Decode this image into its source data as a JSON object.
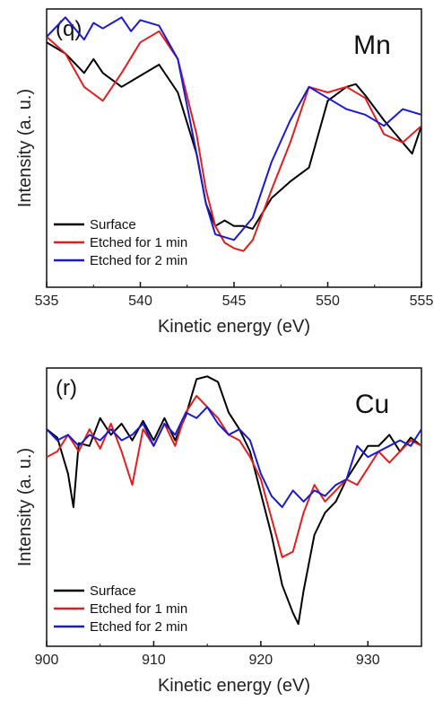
{
  "chart_data": [
    {
      "type": "line",
      "panel_label": "(q)",
      "element_label": "Mn",
      "xlabel": "Kinetic energy (eV)",
      "ylabel": "Intensity (a. u.)",
      "xlim": [
        535,
        555
      ],
      "x_ticks": [
        535,
        540,
        545,
        550,
        555
      ],
      "grid": false,
      "legend_position": "bottom-left",
      "series": [
        {
          "name": "Surface",
          "color": "#000000",
          "x": [
            535,
            536,
            537,
            537.5,
            538,
            539,
            540,
            541,
            542,
            543,
            543.5,
            544,
            544.5,
            545,
            545.5,
            546,
            547,
            548,
            549,
            550,
            551,
            551.5,
            552,
            553,
            554,
            554.5,
            555
          ],
          "y": [
            0.88,
            0.84,
            0.77,
            0.82,
            0.77,
            0.72,
            0.76,
            0.8,
            0.7,
            0.48,
            0.3,
            0.22,
            0.24,
            0.22,
            0.22,
            0.21,
            0.32,
            0.38,
            0.43,
            0.67,
            0.72,
            0.73,
            0.69,
            0.6,
            0.52,
            0.48,
            0.58
          ]
        },
        {
          "name": "Etched for 1 min",
          "color": "#e02020",
          "x": [
            535,
            536,
            537,
            538,
            539,
            540,
            541,
            542,
            543,
            543.5,
            544,
            544.5,
            545,
            545.5,
            546,
            547,
            548,
            549,
            550,
            551,
            552,
            553,
            554,
            555
          ],
          "y": [
            0.9,
            0.84,
            0.72,
            0.67,
            0.77,
            0.88,
            0.92,
            0.82,
            0.55,
            0.35,
            0.22,
            0.16,
            0.14,
            0.13,
            0.17,
            0.35,
            0.52,
            0.72,
            0.7,
            0.72,
            0.68,
            0.55,
            0.52,
            0.58
          ]
        },
        {
          "name": "Etched for 2 min",
          "color": "#1a1ad0",
          "x": [
            535,
            536,
            537,
            537.5,
            538,
            539,
            539.5,
            540,
            541,
            542,
            543,
            543.5,
            544,
            544.5,
            545,
            546,
            547,
            548,
            549,
            550,
            551,
            552,
            553,
            554,
            555
          ],
          "y": [
            0.9,
            0.97,
            0.89,
            0.95,
            0.93,
            0.97,
            0.92,
            0.96,
            0.94,
            0.82,
            0.48,
            0.3,
            0.19,
            0.18,
            0.17,
            0.25,
            0.45,
            0.6,
            0.72,
            0.68,
            0.64,
            0.62,
            0.58,
            0.64,
            0.62
          ]
        }
      ]
    },
    {
      "type": "line",
      "panel_label": "(r)",
      "element_label": "Cu",
      "xlabel": "Kinetic energy (eV)",
      "ylabel": "Intensity (a. u.)",
      "xlim": [
        900,
        935
      ],
      "x_ticks": [
        900,
        910,
        920,
        930
      ],
      "grid": false,
      "legend_position": "bottom-left",
      "series": [
        {
          "name": "Surface",
          "color": "#000000",
          "x": [
            900,
            901,
            902,
            902.5,
            903,
            904,
            905,
            906,
            907,
            908,
            909,
            910,
            911,
            912,
            913,
            914,
            915,
            916,
            917,
            918,
            919,
            920,
            921,
            922,
            923,
            923.5,
            924,
            925,
            926,
            927,
            928,
            929,
            930,
            931,
            932,
            933,
            934,
            935
          ],
          "y": [
            0.78,
            0.75,
            0.62,
            0.5,
            0.73,
            0.72,
            0.82,
            0.76,
            0.8,
            0.74,
            0.81,
            0.74,
            0.82,
            0.74,
            0.83,
            0.96,
            0.97,
            0.95,
            0.84,
            0.78,
            0.7,
            0.55,
            0.4,
            0.22,
            0.12,
            0.08,
            0.2,
            0.4,
            0.48,
            0.52,
            0.6,
            0.66,
            0.72,
            0.72,
            0.76,
            0.7,
            0.75,
            0.72
          ]
        },
        {
          "name": "Etched for 1 min",
          "color": "#e02020",
          "x": [
            900,
            901,
            902,
            903,
            904,
            905,
            906,
            907,
            908,
            909,
            910,
            911,
            912,
            913,
            914,
            915,
            916,
            917,
            918,
            919,
            920,
            921,
            922,
            923,
            924,
            925,
            926,
            927,
            928,
            929,
            930,
            931,
            932,
            933,
            934,
            935
          ],
          "y": [
            0.68,
            0.7,
            0.76,
            0.7,
            0.78,
            0.71,
            0.8,
            0.7,
            0.58,
            0.78,
            0.72,
            0.8,
            0.72,
            0.84,
            0.9,
            0.86,
            0.82,
            0.76,
            0.74,
            0.68,
            0.6,
            0.46,
            0.32,
            0.34,
            0.48,
            0.58,
            0.52,
            0.56,
            0.6,
            0.58,
            0.64,
            0.7,
            0.66,
            0.7,
            0.74,
            0.72
          ]
        },
        {
          "name": "Etched for 2 min",
          "color": "#1a1ad0",
          "x": [
            900,
            901,
            902,
            903,
            904,
            905,
            906,
            907,
            908,
            909,
            910,
            911,
            912,
            913,
            914,
            915,
            916,
            917,
            918,
            919,
            920,
            921,
            922,
            923,
            924,
            925,
            926,
            927,
            928,
            929,
            930,
            931,
            932,
            933,
            934,
            935
          ],
          "y": [
            0.78,
            0.74,
            0.76,
            0.72,
            0.76,
            0.74,
            0.78,
            0.74,
            0.76,
            0.8,
            0.72,
            0.8,
            0.76,
            0.84,
            0.82,
            0.86,
            0.8,
            0.76,
            0.78,
            0.74,
            0.62,
            0.54,
            0.5,
            0.56,
            0.52,
            0.56,
            0.54,
            0.58,
            0.6,
            0.72,
            0.68,
            0.7,
            0.72,
            0.74,
            0.72,
            0.78
          ]
        }
      ]
    }
  ]
}
